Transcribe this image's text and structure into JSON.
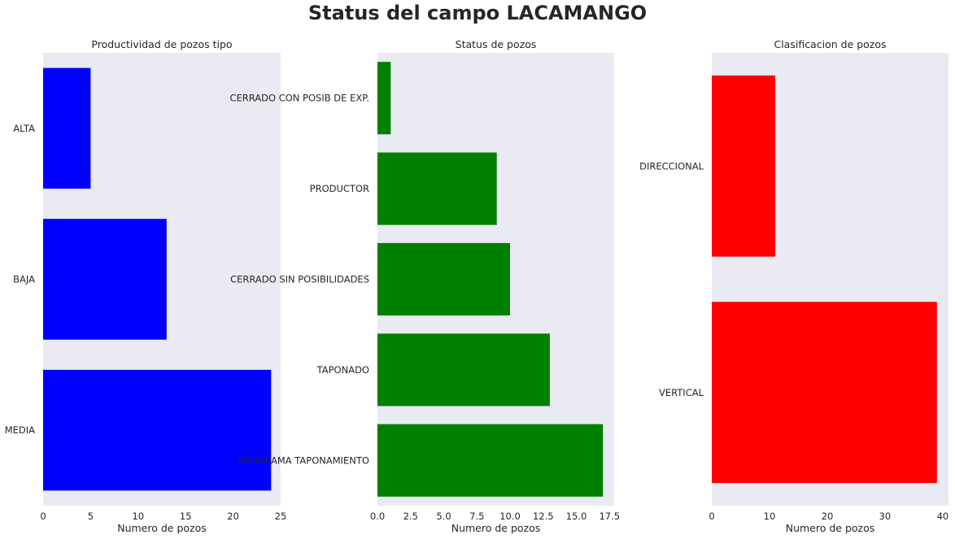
{
  "suptitle": "Status del campo LACAMANGO",
  "chart_data": [
    {
      "type": "bar",
      "orientation": "horizontal",
      "title": "Productividad de pozos tipo",
      "xlabel": "Numero de pozos",
      "ylabel": "",
      "categories": [
        "MEDIA",
        "BAJA",
        "ALTA"
      ],
      "values": [
        24,
        13,
        5
      ],
      "xlim": [
        0,
        25
      ],
      "xticks": [
        "0",
        "5",
        "10",
        "15",
        "20",
        "25"
      ],
      "color": "#0000ff",
      "background": "#eaeaf2",
      "grid": false
    },
    {
      "type": "bar",
      "orientation": "horizontal",
      "title": "Status de pozos",
      "xlabel": "Numero de pozos",
      "ylabel": "",
      "categories": [
        "PROGRAMA TAPONAMIENTO",
        "TAPONADO",
        "CERRADO SIN POSIBILIDADES",
        "PRODUCTOR",
        "CERRADO CON POSIB DE EXP."
      ],
      "values": [
        17,
        13,
        10,
        9,
        1
      ],
      "xlim": [
        0,
        17.85
      ],
      "xticks": [
        "0.0",
        "2.5",
        "5.0",
        "7.5",
        "10.0",
        "12.5",
        "15.0",
        "17.5"
      ],
      "color": "#008000",
      "background": "#eaeaf2",
      "grid": false
    },
    {
      "type": "bar",
      "orientation": "horizontal",
      "title": "Clasificacion de pozos",
      "xlabel": "Numero de pozos",
      "ylabel": "",
      "categories": [
        "VERTICAL",
        "DIRECCIONAL"
      ],
      "values": [
        39,
        11
      ],
      "xlim": [
        0,
        41
      ],
      "xticks": [
        "0",
        "10",
        "20",
        "30",
        "40"
      ],
      "color": "#ff0000",
      "background": "#eaeaf2",
      "grid": false
    }
  ]
}
